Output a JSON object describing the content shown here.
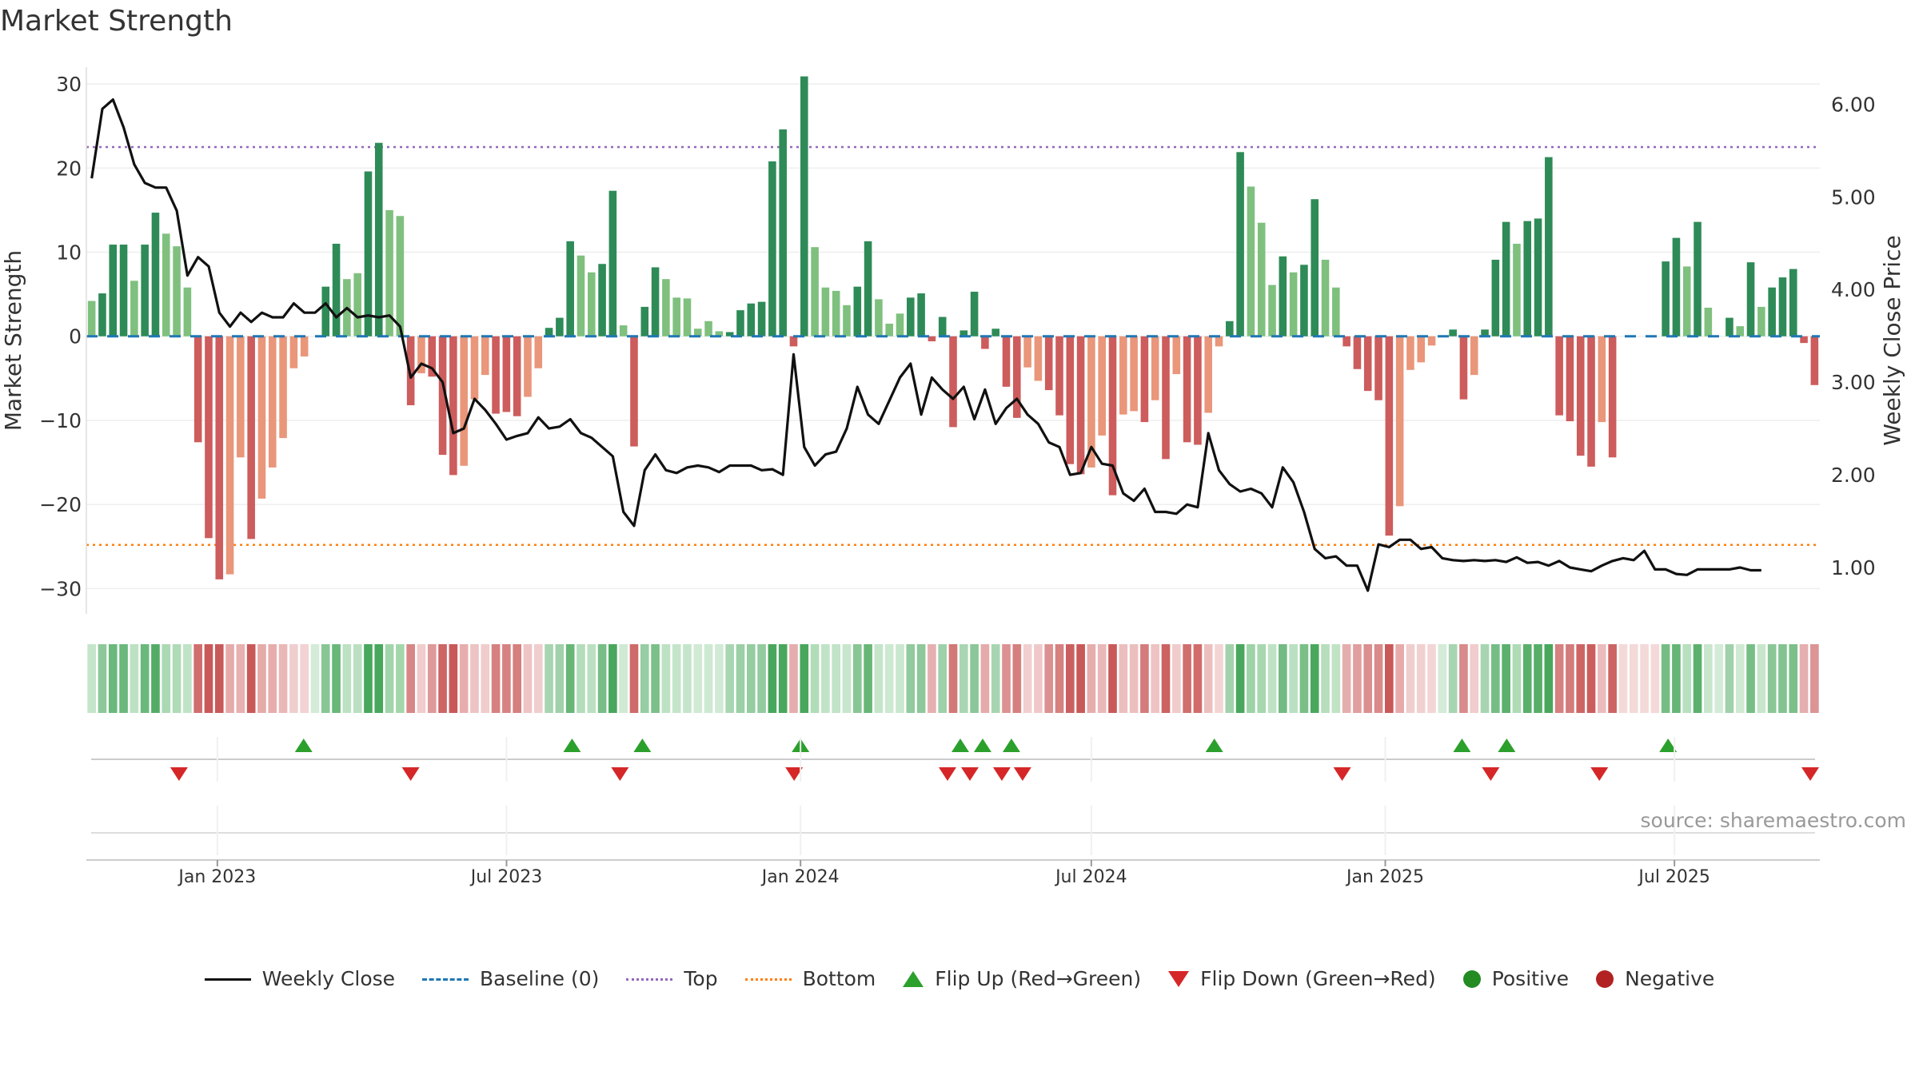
{
  "title": "Market Strength",
  "source": "source: sharemaestro.com",
  "colors": {
    "strong_pos": "#2e8b57",
    "weak_pos": "#7fc07f",
    "strong_neg": "#cd5c5c",
    "weak_neg": "#e9967a",
    "price_line": "#111111",
    "baseline": "#1f77b4",
    "top": "#9467bd",
    "bottom": "#ff7f0e",
    "flip_up": "#2ca02c",
    "flip_down": "#d62728",
    "positive": "#228b22",
    "negative": "#b22222"
  },
  "legend": [
    {
      "label": "Weekly Close",
      "kind": "line"
    },
    {
      "label": "Baseline (0)",
      "kind": "dash"
    },
    {
      "label": "Top",
      "kind": "top"
    },
    {
      "label": "Bottom",
      "kind": "bot"
    },
    {
      "label": "Flip Up (Red→Green)",
      "kind": "up"
    },
    {
      "label": "Flip Down (Green→Red)",
      "kind": "down"
    },
    {
      "label": "Positive",
      "kind": "pos"
    },
    {
      "label": "Negative",
      "kind": "neg"
    }
  ],
  "chart_data": {
    "type": "bar",
    "title": "Market Strength",
    "ylabel_left": "Market Strength",
    "ylabel_right": "Weekly Close Price",
    "y_left_ticks": [
      30,
      20,
      10,
      0,
      -10,
      -20,
      -30
    ],
    "y_left_range": [
      -33,
      32
    ],
    "y_right_ticks": [
      "6.00",
      "5.00",
      "4.00",
      "3.00",
      "2.00",
      "1.00"
    ],
    "y_right_range": [
      0.5,
      6.4
    ],
    "x_ticks": [
      {
        "label": "Jan 2023",
        "date": "2023-01-01"
      },
      {
        "label": "Jul 2023",
        "date": "2023-07-01"
      },
      {
        "label": "Jan 2024",
        "date": "2024-01-01"
      },
      {
        "label": "Jul 2024",
        "date": "2024-07-01"
      },
      {
        "label": "Jan 2025",
        "date": "2025-01-01"
      },
      {
        "label": "Jul 2025",
        "date": "2025-07-01"
      }
    ],
    "x_range": [
      "2022-10-11",
      "2025-09-30"
    ],
    "top_level": 22.5,
    "bottom_level": -24.8,
    "baseline": 0,
    "strength": [
      4.2,
      5.1,
      10.9,
      10.9,
      6.6,
      10.9,
      14.7,
      12.2,
      10.7,
      5.8,
      -12.6,
      -24,
      -28.9,
      -28.3,
      -14.4,
      -24.1,
      -19.3,
      -15.6,
      -12.1,
      -3.8,
      -2.4,
      0,
      5.9,
      11,
      6.8,
      7.5,
      19.6,
      23,
      15,
      14.3,
      -8.2,
      -4.4,
      -4.8,
      -14.1,
      -16.5,
      -15.4,
      -7.5,
      -4.6,
      -9.2,
      -9,
      -9.5,
      -7.2,
      -3.8,
      1,
      2.2,
      11.3,
      9.6,
      7.6,
      8.6,
      17.3,
      1.3,
      -13.1,
      3.5,
      8.2,
      6.8,
      4.6,
      4.5,
      0.9,
      1.8,
      0.6,
      0.5,
      3.1,
      3.9,
      4.1,
      20.8,
      24.6,
      -1.2,
      30.9,
      10.6,
      5.8,
      5.4,
      3.7,
      5.9,
      11.3,
      4.4,
      1.5,
      2.7,
      4.6,
      5.1,
      -0.6,
      2.3,
      -10.8,
      0.7,
      5.3,
      -1.5,
      0.9,
      -6,
      -9.7,
      -3.7,
      -5.3,
      -6.4,
      -9.4,
      -15.2,
      -16.4,
      -15.6,
      -11.8,
      -18.9,
      -9.3,
      -8.9,
      -10.2,
      -7.6,
      -14.6,
      -4.5,
      -12.6,
      -12.9,
      -9.1,
      -1.2,
      1.8,
      21.9,
      17.8,
      13.5,
      6.1,
      9.5,
      7.6,
      8.5,
      16.3,
      9.1,
      5.8,
      -1.2,
      -3.9,
      -6.5,
      -7.6,
      -23.7,
      -20.2,
      -4,
      -3.1,
      -1.1,
      0,
      0.8,
      -7.5,
      -4.6,
      0.8,
      9.1,
      13.6,
      11,
      13.7,
      14,
      21.3,
      -9.4,
      -10.1,
      -14.2,
      -15.5,
      -10.2,
      -14.4,
      0,
      0,
      0,
      0,
      8.9,
      11.7,
      8.3,
      13.6,
      3.4,
      0,
      2.2,
      1.2,
      8.8,
      3.5,
      5.8,
      7,
      8,
      -0.8,
      -5.8
    ],
    "strength_band": [
      "weak_pos",
      "strong_pos",
      "strong_pos",
      "strong_pos",
      "weak_pos",
      "strong_pos",
      "strong_pos",
      "weak_pos",
      "weak_pos",
      "weak_pos",
      "strong_neg",
      "strong_neg",
      "strong_neg",
      "weak_neg",
      "weak_neg",
      "strong_neg",
      "weak_neg",
      "weak_neg",
      "weak_neg",
      "weak_neg",
      "weak_neg",
      "weak_pos",
      "strong_pos",
      "strong_pos",
      "weak_pos",
      "weak_pos",
      "strong_pos",
      "strong_pos",
      "weak_pos",
      "weak_pos",
      "strong_neg",
      "weak_neg",
      "strong_neg",
      "strong_neg",
      "strong_neg",
      "weak_neg",
      "weak_neg",
      "weak_neg",
      "strong_neg",
      "strong_neg",
      "strong_neg",
      "weak_neg",
      "weak_neg",
      "strong_pos",
      "strong_pos",
      "strong_pos",
      "weak_pos",
      "weak_pos",
      "strong_pos",
      "strong_pos",
      "weak_pos",
      "strong_neg",
      "strong_pos",
      "strong_pos",
      "weak_pos",
      "weak_pos",
      "weak_pos",
      "weak_pos",
      "weak_pos",
      "weak_pos",
      "strong_pos",
      "strong_pos",
      "strong_pos",
      "strong_pos",
      "strong_pos",
      "strong_pos",
      "strong_neg",
      "strong_pos",
      "weak_pos",
      "weak_pos",
      "weak_pos",
      "weak_pos",
      "strong_pos",
      "strong_pos",
      "weak_pos",
      "weak_pos",
      "weak_pos",
      "strong_pos",
      "strong_pos",
      "strong_neg",
      "strong_pos",
      "strong_neg",
      "strong_pos",
      "strong_pos",
      "strong_neg",
      "strong_pos",
      "strong_neg",
      "strong_neg",
      "weak_neg",
      "weak_neg",
      "strong_neg",
      "strong_neg",
      "strong_neg",
      "strong_neg",
      "weak_neg",
      "weak_neg",
      "strong_neg",
      "weak_neg",
      "weak_neg",
      "strong_neg",
      "weak_neg",
      "strong_neg",
      "weak_neg",
      "strong_neg",
      "strong_neg",
      "weak_neg",
      "weak_neg",
      "strong_pos",
      "strong_pos",
      "weak_pos",
      "weak_pos",
      "weak_pos",
      "strong_pos",
      "weak_pos",
      "strong_pos",
      "strong_pos",
      "weak_pos",
      "weak_pos",
      "strong_neg",
      "strong_neg",
      "strong_neg",
      "strong_neg",
      "strong_neg",
      "weak_neg",
      "weak_neg",
      "weak_neg",
      "weak_neg",
      "weak_pos",
      "strong_pos",
      "strong_neg",
      "weak_neg",
      "strong_pos",
      "strong_pos",
      "strong_pos",
      "weak_pos",
      "strong_pos",
      "strong_pos",
      "strong_pos",
      "strong_neg",
      "strong_neg",
      "strong_neg",
      "strong_neg",
      "weak_neg",
      "strong_neg",
      "weak_neg",
      "weak_neg",
      "weak_neg",
      "weak_neg",
      "strong_pos",
      "strong_pos",
      "weak_pos",
      "strong_pos",
      "weak_pos",
      "weak_pos",
      "strong_pos",
      "weak_pos",
      "strong_pos",
      "weak_pos",
      "strong_pos",
      "strong_pos",
      "strong_pos",
      "strong_neg",
      "strong_neg"
    ],
    "close_price": [
      5.2,
      5.95,
      6.05,
      5.75,
      5.35,
      5.15,
      5.1,
      5.1,
      4.85,
      4.15,
      4.35,
      4.25,
      3.75,
      3.6,
      3.75,
      3.65,
      3.75,
      3.7,
      3.7,
      3.85,
      3.75,
      3.75,
      3.85,
      3.7,
      3.8,
      3.7,
      3.72,
      3.7,
      3.72,
      3.6,
      3.05,
      3.2,
      3.15,
      3,
      2.45,
      2.5,
      2.82,
      2.7,
      2.55,
      2.38,
      2.42,
      2.45,
      2.62,
      2.5,
      2.52,
      2.6,
      2.45,
      2.4,
      2.3,
      2.2,
      1.6,
      1.45,
      2.05,
      2.22,
      2.05,
      2.02,
      2.08,
      2.1,
      2.08,
      2.03,
      2.1,
      2.1,
      2.1,
      2.05,
      2.06,
      2.0,
      3.3,
      2.3,
      2.1,
      2.22,
      2.25,
      2.5,
      2.95,
      2.65,
      2.55,
      2.8,
      3.05,
      3.2,
      2.65,
      3.05,
      2.92,
      2.82,
      2.95,
      2.6,
      2.92,
      2.55,
      2.72,
      2.82,
      2.65,
      2.55,
      2.35,
      2.3,
      2.0,
      2.02,
      2.3,
      2.12,
      2.1,
      1.8,
      1.72,
      1.85,
      1.6,
      1.6,
      1.58,
      1.68,
      1.65,
      2.45,
      2.05,
      1.9,
      1.82,
      1.85,
      1.8,
      1.65,
      2.08,
      1.92,
      1.6,
      1.2,
      1.1,
      1.12,
      1.02,
      1.02,
      0.75,
      1.25,
      1.22,
      1.3,
      1.3,
      1.2,
      1.22,
      1.1,
      1.08,
      1.07,
      1.08,
      1.07,
      1.08,
      1.06,
      1.11,
      1.05,
      1.06,
      1.02,
      1.07,
      1.0,
      0.98,
      0.96,
      1.02,
      1.07,
      1.1,
      1.08,
      1.18,
      0.98,
      0.98,
      0.93,
      0.92,
      0.98,
      0.98,
      0.98,
      0.98,
      1.0,
      0.97,
      0.97
    ],
    "flip_up_dates": [
      "2023-02-24",
      "2023-08-11",
      "2023-09-24",
      "2024-01-01",
      "2024-04-10",
      "2024-04-24",
      "2024-05-12",
      "2024-09-16",
      "2025-02-18",
      "2025-03-18",
      "2025-06-27"
    ],
    "flip_down_dates": [
      "2022-12-08",
      "2023-05-02",
      "2023-09-10",
      "2023-12-28",
      "2024-04-02",
      "2024-04-16",
      "2024-05-06",
      "2024-05-19",
      "2024-12-05",
      "2025-03-08",
      "2025-05-15",
      "2025-09-24"
    ],
    "grid": true
  }
}
